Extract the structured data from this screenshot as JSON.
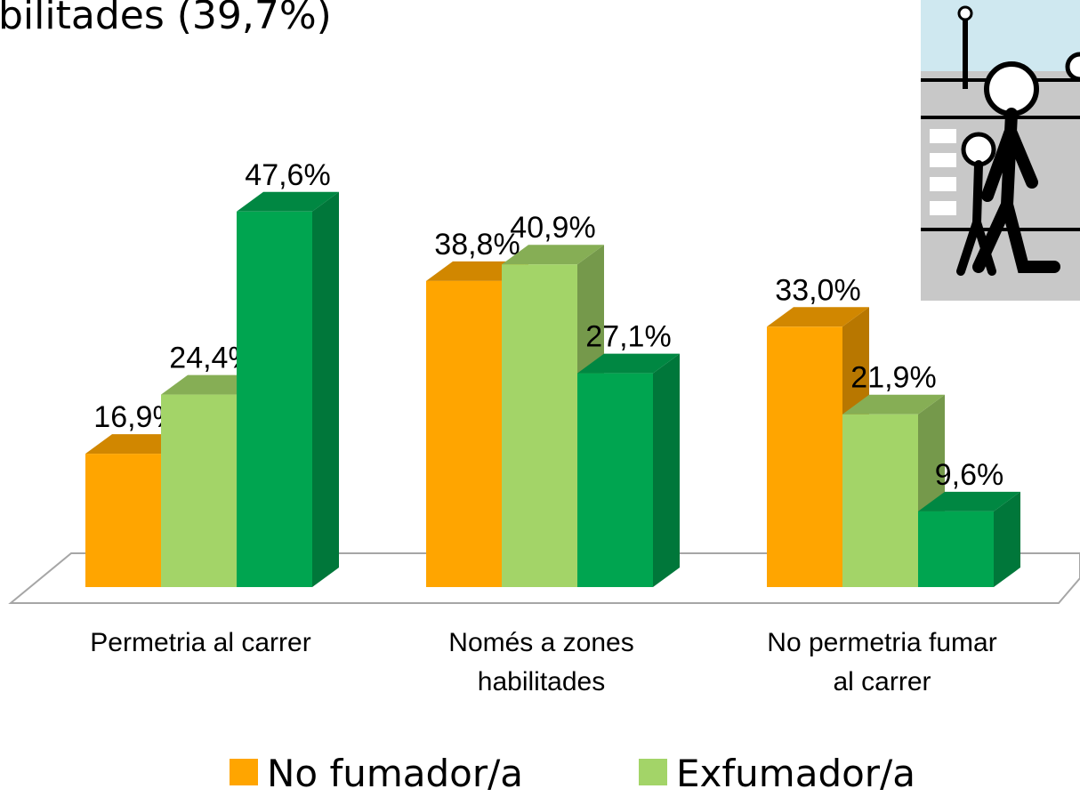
{
  "chart_data": {
    "type": "bar3d",
    "title": "bilitades (39,7%)",
    "categories": [
      "Permetria al carrer",
      "Només a zones\nhabilitades",
      "No permetria fumar\nal carrer"
    ],
    "series": [
      {
        "name": "No fumador/a",
        "color": "#FFA500",
        "values": [
          16.9,
          38.8,
          33.0
        ],
        "value_labels": [
          "16,9%",
          "38,8%",
          "33,0%"
        ]
      },
      {
        "name": "Exfumador/a",
        "color": "#A3D468",
        "values": [
          24.4,
          40.9,
          21.9
        ],
        "value_labels": [
          "24,4%",
          "40,9%",
          "21,9%"
        ]
      },
      {
        "color": "#00A550",
        "values": [
          47.6,
          27.1,
          9.6
        ],
        "value_labels": [
          "47,6%",
          "27,1%",
          "9,6%"
        ]
      }
    ]
  }
}
